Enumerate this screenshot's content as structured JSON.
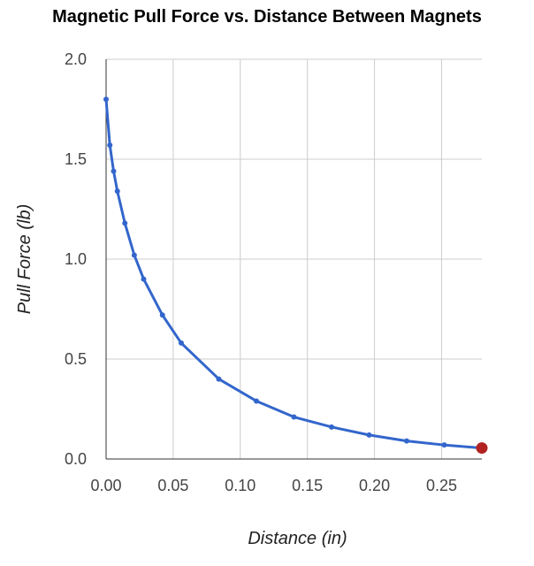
{
  "chart_data": {
    "type": "line",
    "title": "Magnetic Pull Force vs. Distance Between Magnets",
    "xlabel": "Distance (in)",
    "ylabel": "Pull Force (lb)",
    "xlim": [
      0,
      0.28
    ],
    "ylim": [
      0,
      2.0
    ],
    "x_ticks": [
      "0.00",
      "0.05",
      "0.10",
      "0.15",
      "0.20",
      "0.25"
    ],
    "x_tick_values": [
      0,
      0.05,
      0.1,
      0.15,
      0.2,
      0.25
    ],
    "y_ticks": [
      "0.0",
      "0.5",
      "1.0",
      "1.5",
      "2.0"
    ],
    "y_tick_values": [
      0,
      0.5,
      1.0,
      1.5,
      2.0
    ],
    "grid": true,
    "series": [
      {
        "color": "#3366cc",
        "x": [
          0.0,
          0.0028,
          0.0056,
          0.0084,
          0.014,
          0.021,
          0.028,
          0.042,
          0.056,
          0.084,
          0.112,
          0.14,
          0.168,
          0.196,
          0.224,
          0.252,
          0.28
        ],
        "y": [
          1.8,
          1.57,
          1.44,
          1.34,
          1.18,
          1.02,
          0.9,
          0.72,
          0.58,
          0.4,
          0.29,
          0.21,
          0.16,
          0.12,
          0.09,
          0.07,
          0.055
        ]
      }
    ],
    "highlight_point": {
      "x": 0.28,
      "y": 0.055,
      "color": "#b22222"
    }
  }
}
